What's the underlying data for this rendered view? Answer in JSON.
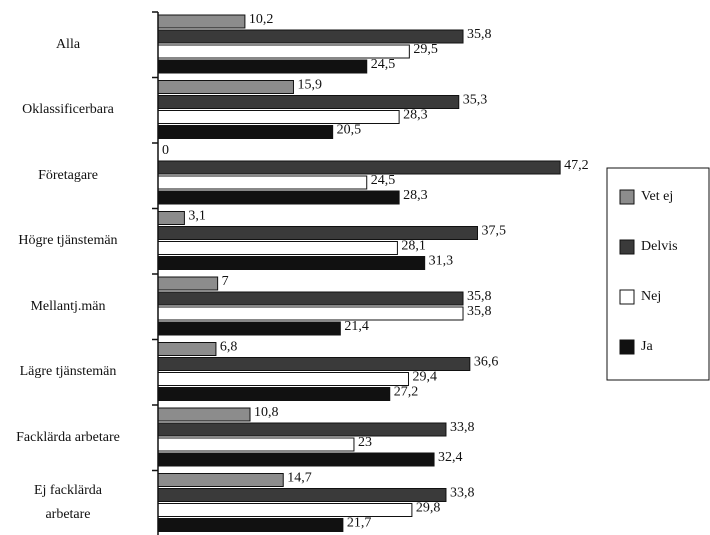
{
  "chart_data": {
    "type": "bar",
    "orientation": "horizontal",
    "categories": [
      "Alla",
      "Oklassificerbara",
      "Företagare",
      "Högre tjänstemän",
      "Mellantj.män",
      "Lägre tjänstemän",
      "Facklärda arbetare",
      "Ej facklärda\narbetare"
    ],
    "series": [
      {
        "name": "Vet ej",
        "color": "#8c8c8c",
        "values": [
          10.2,
          15.9,
          0,
          3.1,
          7,
          6.8,
          10.8,
          14.7
        ],
        "value_labels": [
          "10,2",
          "15,9",
          "0",
          "3,1",
          "7",
          "6,8",
          "10,8",
          "14,7"
        ]
      },
      {
        "name": "Delvis",
        "color": "#3a3a3a",
        "values": [
          35.8,
          35.3,
          47.2,
          37.5,
          35.8,
          36.6,
          33.8,
          33.8
        ],
        "value_labels": [
          "35,8",
          "35,3",
          "47,2",
          "37,5",
          "35,8",
          "36,6",
          "33,8",
          "33,8"
        ]
      },
      {
        "name": "Nej",
        "color": "#ffffff",
        "values": [
          29.5,
          28.3,
          24.5,
          28.1,
          35.8,
          29.4,
          23,
          29.8
        ],
        "value_labels": [
          "29,5",
          "28,3",
          "24,5",
          "28,1",
          "35,8",
          "29,4",
          "23",
          "29,8"
        ]
      },
      {
        "name": "Ja",
        "color": "#111111",
        "values": [
          24.5,
          20.5,
          28.3,
          31.3,
          21.4,
          27.2,
          32.4,
          21.7
        ],
        "value_labels": [
          "24,5",
          "20,5",
          "28,3",
          "31,3",
          "21,4",
          "27,2",
          "32,4",
          "21,7"
        ]
      }
    ],
    "xlim": [
      0,
      50
    ],
    "legend": "right"
  }
}
